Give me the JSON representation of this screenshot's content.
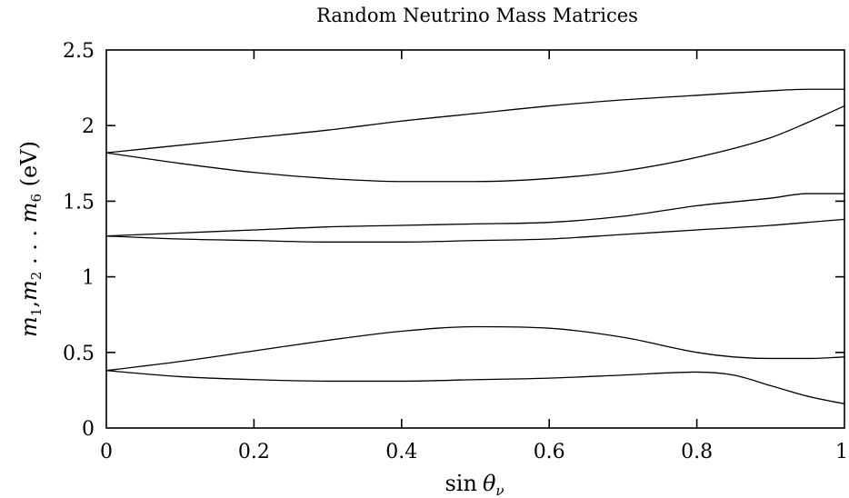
{
  "chart_data": {
    "type": "line",
    "title": "Random Neutrino Mass Matrices",
    "xlabel": "sin θ_ν",
    "ylabel": "m_1, m_2 ... m_6 (eV)",
    "xlim": [
      0,
      1
    ],
    "ylim": [
      0,
      2.5
    ],
    "xticks": [
      {
        "value": 0,
        "label": "0"
      },
      {
        "value": 0.2,
        "label": "0.2"
      },
      {
        "value": 0.4,
        "label": "0.4"
      },
      {
        "value": 0.6,
        "label": "0.6"
      },
      {
        "value": 0.8,
        "label": "0.8"
      },
      {
        "value": 1,
        "label": "1"
      }
    ],
    "yticks": [
      {
        "value": 0,
        "label": "0"
      },
      {
        "value": 0.5,
        "label": "0.5"
      },
      {
        "value": 1,
        "label": "1"
      },
      {
        "value": 1.5,
        "label": "1.5"
      },
      {
        "value": 2,
        "label": "2"
      },
      {
        "value": 2.5,
        "label": "2.5"
      }
    ],
    "grid": false,
    "legend": "none",
    "series": [
      {
        "x": [
          0,
          0.1,
          0.2,
          0.3,
          0.4,
          0.5,
          0.6,
          0.7,
          0.8,
          0.9,
          0.95,
          1.0
        ],
        "values": [
          1.82,
          1.87,
          1.92,
          1.97,
          2.03,
          2.08,
          2.13,
          2.17,
          2.2,
          2.23,
          2.24,
          2.24
        ]
      },
      {
        "x": [
          0,
          0.1,
          0.2,
          0.3,
          0.4,
          0.5,
          0.6,
          0.7,
          0.8,
          0.9,
          0.95,
          1.0
        ],
        "values": [
          1.82,
          1.75,
          1.69,
          1.65,
          1.63,
          1.63,
          1.65,
          1.7,
          1.79,
          1.92,
          2.02,
          2.13
        ]
      },
      {
        "x": [
          0,
          0.1,
          0.2,
          0.3,
          0.4,
          0.5,
          0.6,
          0.7,
          0.8,
          0.9,
          0.95,
          1.0
        ],
        "values": [
          1.27,
          1.29,
          1.31,
          1.33,
          1.34,
          1.35,
          1.36,
          1.4,
          1.47,
          1.52,
          1.55,
          1.55
        ]
      },
      {
        "x": [
          0,
          0.1,
          0.2,
          0.3,
          0.4,
          0.5,
          0.6,
          0.7,
          0.8,
          0.9,
          0.95,
          1.0
        ],
        "values": [
          1.27,
          1.25,
          1.24,
          1.23,
          1.23,
          1.24,
          1.25,
          1.28,
          1.31,
          1.34,
          1.36,
          1.38
        ]
      },
      {
        "x": [
          0,
          0.1,
          0.2,
          0.3,
          0.4,
          0.5,
          0.6,
          0.7,
          0.8,
          0.85,
          0.9,
          0.95,
          1.0
        ],
        "values": [
          0.38,
          0.44,
          0.51,
          0.58,
          0.64,
          0.67,
          0.66,
          0.6,
          0.5,
          0.47,
          0.46,
          0.46,
          0.47
        ]
      },
      {
        "x": [
          0,
          0.1,
          0.2,
          0.3,
          0.4,
          0.5,
          0.6,
          0.7,
          0.8,
          0.85,
          0.9,
          0.95,
          1.0
        ],
        "values": [
          0.38,
          0.34,
          0.32,
          0.31,
          0.31,
          0.32,
          0.33,
          0.35,
          0.37,
          0.35,
          0.28,
          0.21,
          0.16
        ]
      }
    ]
  }
}
